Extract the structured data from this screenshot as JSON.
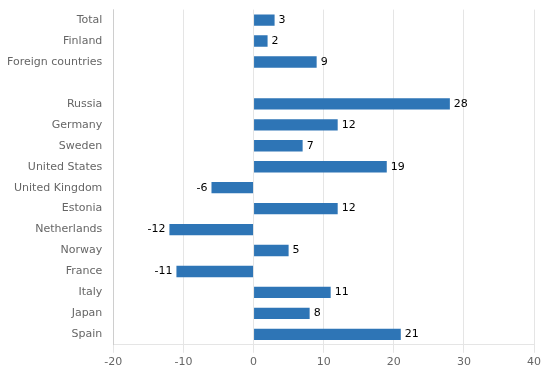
{
  "chart_data": {
    "type": "bar",
    "orientation": "horizontal",
    "categories": [
      "Spain",
      "Japan",
      "Italy",
      "France",
      "Norway",
      "Netherlands",
      "Estonia",
      "United Kingdom",
      "United States",
      "Sweden",
      "Germany",
      "Russia",
      null,
      "Foreign countries",
      "Finland",
      "Total"
    ],
    "values": [
      21,
      8,
      11,
      -11,
      5,
      -12,
      12,
      -6,
      19,
      7,
      12,
      28,
      null,
      9,
      2,
      3
    ],
    "color": "#2E75B6",
    "xlim": [
      -20,
      40
    ],
    "xticks": [
      -20,
      -10,
      0,
      10,
      20,
      30,
      40
    ],
    "grid": true,
    "data_labels": true
  }
}
